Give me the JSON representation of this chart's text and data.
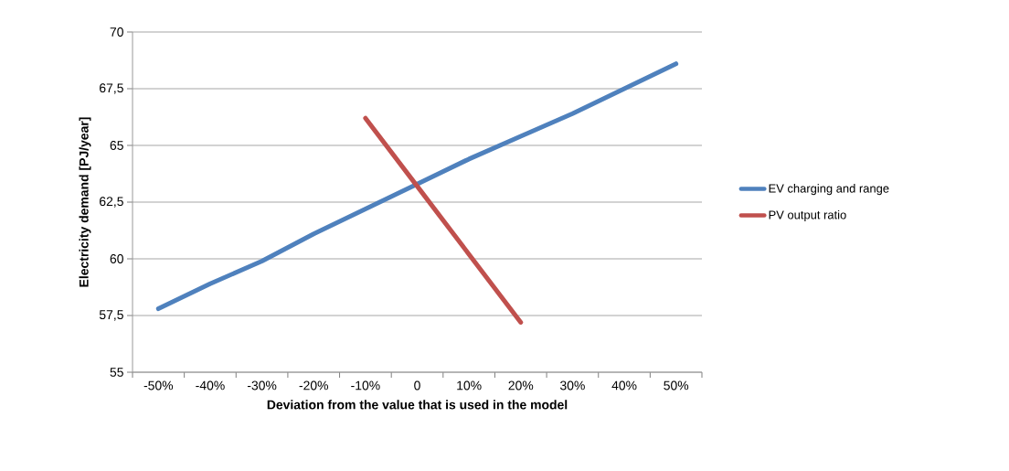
{
  "chart_data": {
    "type": "line",
    "xlabel": "Deviation from the value that is used in the model",
    "ylabel": "Electricity demand [PJ/year]",
    "categories": [
      "-50%",
      "-40%",
      "-30%",
      "-20%",
      "-10%",
      "0",
      "10%",
      "20%",
      "30%",
      "40%",
      "50%"
    ],
    "series": [
      {
        "name": "EV charging and range",
        "color": "#4f81bd",
        "values": [
          57.8,
          58.9,
          59.9,
          61.1,
          62.2,
          63.3,
          64.4,
          65.4,
          66.4,
          67.5,
          68.6
        ]
      },
      {
        "name": "PV output ratio",
        "color": "#c0504d",
        "values": [
          null,
          null,
          null,
          null,
          66.2,
          63.2,
          60.2,
          57.2,
          null,
          null,
          null
        ]
      }
    ],
    "ylim": [
      55,
      70
    ],
    "yticks": [
      55,
      {
        "value": 57.5,
        "label": "57,5"
      },
      60,
      {
        "value": 62.5,
        "label": "62,5"
      },
      65,
      {
        "value": 67.5,
        "label": "67,5"
      },
      70
    ],
    "grid": "y",
    "legend": "right",
    "marker": "none",
    "line_style": "solid"
  }
}
